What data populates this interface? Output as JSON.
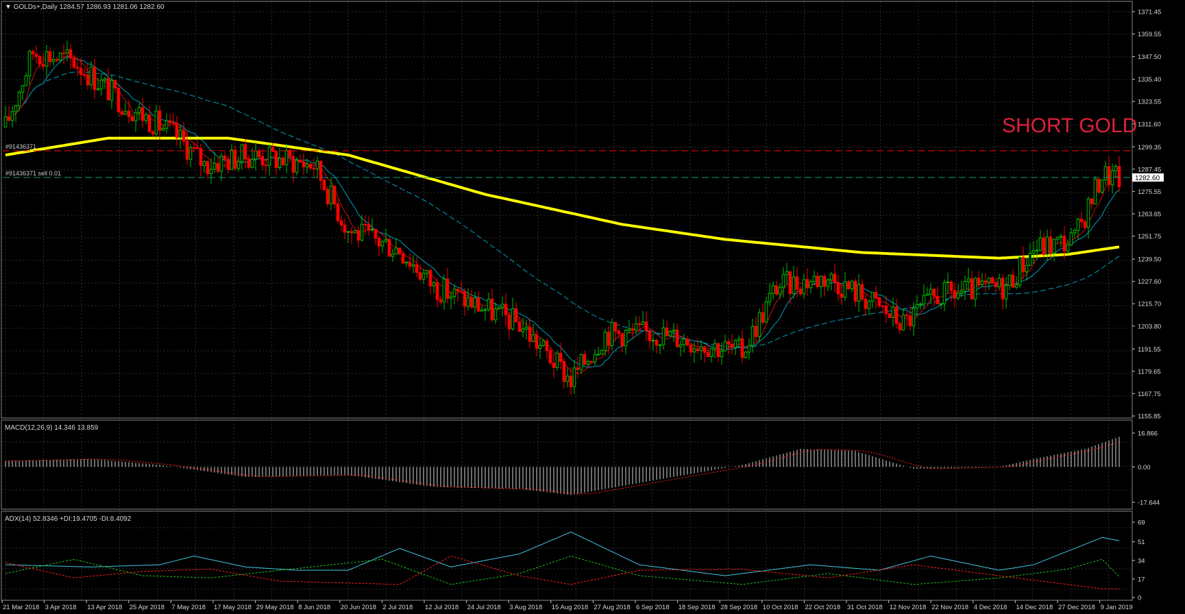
{
  "window": {
    "symbol_label": "GOLDs+,Daily",
    "ohlc_readout": "1284.57 1286.93 1281.06 1282.60"
  },
  "price_panel": {
    "current_price": "1282.60",
    "annotation": "SHORT GOLD",
    "order_line_1_label": "#91436371",
    "order_line_2_label": "#91436371 sell 0.01",
    "axis_ticks": [
      "1371.45",
      "1359.55",
      "1347.50",
      "1335.40",
      "1323.55",
      "1311.60",
      "1299.35",
      "1287.45",
      "1275.55",
      "1263.65",
      "1251.75",
      "1239.50",
      "1227.60",
      "1215.70",
      "1203.80",
      "1191.55",
      "1179.65",
      "1167.75",
      "1155.85"
    ],
    "colors": {
      "bull": "#00c000",
      "bear": "#ff0000",
      "ma_yellow": "#ffff00",
      "ma_red": "#ff0000",
      "ma_teal": "#00a0c0",
      "order_sell": "#ff0000",
      "order_entry": "#00a080",
      "annotation": "#e0203a"
    }
  },
  "macd_panel": {
    "label": "MACD(12,26,9) 14.346 13.859",
    "axis_ticks": [
      "16.866",
      "0.00",
      "-17.644"
    ]
  },
  "adx_panel": {
    "label": "ADX(14) 52.8346 +DI:19.4705 -DI:8.4092",
    "axis_ticks": [
      "69",
      "51",
      "34",
      "17",
      "0"
    ]
  },
  "time_axis": {
    "ticks": [
      "21 Mar 2018",
      "3 Apr 2018",
      "13 Apr 2018",
      "25 Apr 2018",
      "7 May 2018",
      "17 May 2018",
      "29 May 2018",
      "8 Jun 2018",
      "20 Jun 2018",
      "2 Jul 2018",
      "12 Jul 2018",
      "24 Jul 2018",
      "3 Aug 2018",
      "15 Aug 2018",
      "27 Aug 2018",
      "6 Sep 2018",
      "18 Sep 2018",
      "28 Sep 2018",
      "10 Oct 2018",
      "22 Oct 2018",
      "31 Oct 2018",
      "12 Nov 2018",
      "22 Nov 2018",
      "4 Dec 2018",
      "14 Dec 2018",
      "27 Dec 2018",
      "9 Jan 2019"
    ]
  },
  "chart_data": {
    "type": "candlestick",
    "price_anchors": [
      [
        0,
        1310
      ],
      [
        8,
        1350
      ],
      [
        20,
        1345
      ],
      [
        35,
        1322
      ],
      [
        50,
        1305
      ],
      [
        58,
        1290
      ],
      [
        72,
        1295
      ],
      [
        90,
        1290
      ],
      [
        100,
        1255
      ],
      [
        115,
        1245
      ],
      [
        125,
        1225
      ],
      [
        150,
        1205
      ],
      [
        165,
        1175
      ],
      [
        175,
        1200
      ],
      [
        190,
        1200
      ],
      [
        215,
        1190
      ],
      [
        225,
        1225
      ],
      [
        240,
        1230
      ],
      [
        250,
        1220
      ],
      [
        262,
        1205
      ],
      [
        272,
        1220
      ],
      [
        292,
        1225
      ],
      [
        300,
        1245
      ],
      [
        312,
        1250
      ],
      [
        320,
        1285
      ],
      [
        325,
        1282.6
      ]
    ],
    "ma_yellow_anchors": [
      [
        0,
        1295
      ],
      [
        30,
        1304
      ],
      [
        65,
        1304
      ],
      [
        100,
        1295
      ],
      [
        140,
        1274
      ],
      [
        180,
        1258
      ],
      [
        210,
        1250
      ],
      [
        250,
        1243
      ],
      [
        290,
        1240
      ],
      [
        310,
        1242
      ],
      [
        325,
        1246
      ]
    ],
    "macd_anchors": [
      [
        0,
        3
      ],
      [
        25,
        4
      ],
      [
        45,
        1
      ],
      [
        70,
        -5
      ],
      [
        100,
        -4
      ],
      [
        125,
        -10
      ],
      [
        150,
        -11
      ],
      [
        165,
        -14
      ],
      [
        185,
        -8
      ],
      [
        215,
        1
      ],
      [
        232,
        9
      ],
      [
        248,
        8
      ],
      [
        265,
        -1
      ],
      [
        290,
        0
      ],
      [
        300,
        4
      ],
      [
        315,
        9
      ],
      [
        325,
        15
      ]
    ],
    "adx_anchors": [
      [
        0,
        30
      ],
      [
        25,
        28
      ],
      [
        45,
        30
      ],
      [
        55,
        38
      ],
      [
        70,
        28
      ],
      [
        85,
        25
      ],
      [
        100,
        25
      ],
      [
        115,
        45
      ],
      [
        130,
        28
      ],
      [
        150,
        40
      ],
      [
        165,
        60
      ],
      [
        185,
        30
      ],
      [
        210,
        20
      ],
      [
        235,
        30
      ],
      [
        255,
        25
      ],
      [
        270,
        38
      ],
      [
        290,
        25
      ],
      [
        300,
        30
      ],
      [
        320,
        55
      ],
      [
        325,
        52
      ]
    ],
    "pdi_anchors": [
      [
        0,
        22
      ],
      [
        20,
        35
      ],
      [
        40,
        20
      ],
      [
        60,
        18
      ],
      [
        80,
        25
      ],
      [
        110,
        35
      ],
      [
        130,
        12
      ],
      [
        150,
        22
      ],
      [
        165,
        38
      ],
      [
        185,
        20
      ],
      [
        215,
        12
      ],
      [
        240,
        22
      ],
      [
        265,
        12
      ],
      [
        290,
        18
      ],
      [
        310,
        26
      ],
      [
        320,
        35
      ],
      [
        325,
        19
      ]
    ],
    "mdi_anchors": [
      [
        0,
        32
      ],
      [
        20,
        18
      ],
      [
        40,
        24
      ],
      [
        60,
        26
      ],
      [
        80,
        15
      ],
      [
        115,
        12
      ],
      [
        130,
        38
      ],
      [
        150,
        20
      ],
      [
        165,
        12
      ],
      [
        185,
        25
      ],
      [
        215,
        26
      ],
      [
        240,
        18
      ],
      [
        265,
        30
      ],
      [
        290,
        20
      ],
      [
        310,
        12
      ],
      [
        320,
        8
      ],
      [
        325,
        8
      ]
    ]
  }
}
